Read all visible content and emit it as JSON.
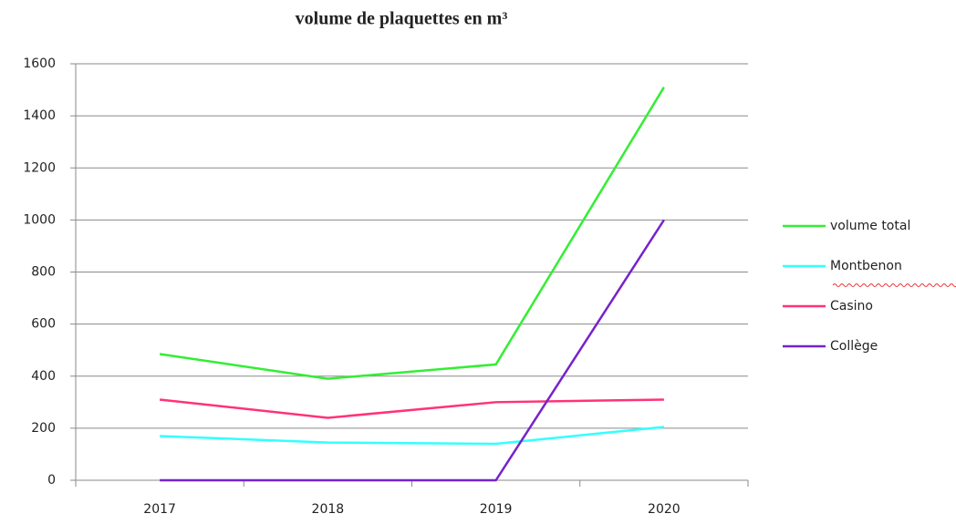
{
  "chart_data": {
    "type": "line",
    "title": "volume de plaquettes en m³",
    "categories": [
      "2017",
      "2018",
      "2019",
      "2020"
    ],
    "series": [
      {
        "name": "volume total",
        "color": "#33ee33",
        "values": [
          485,
          390,
          445,
          1510
        ]
      },
      {
        "name": "Montbenon",
        "color": "#33ffff",
        "values": [
          170,
          145,
          140,
          205
        ]
      },
      {
        "name": "Casino",
        "color": "#ff3377",
        "values": [
          310,
          240,
          300,
          310
        ]
      },
      {
        "name": "Collège",
        "color": "#7722cc",
        "values": [
          0,
          0,
          0,
          1000
        ]
      }
    ],
    "ylim": [
      0,
      1600
    ],
    "yticks": [
      0,
      200,
      400,
      600,
      800,
      1000,
      1200,
      1400,
      1600
    ],
    "grid": true,
    "legend": "right"
  }
}
